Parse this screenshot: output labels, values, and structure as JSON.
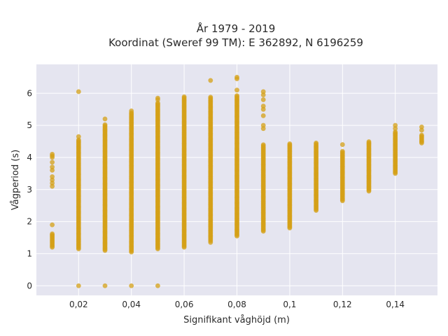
{
  "chart_data": {
    "type": "scatter",
    "title_line1": "År 1979 - 2019",
    "title_line2": "Koordinat (Sweref 99 TM): E 362892, N 6196259",
    "xlabel": "Signifikant våghöjd (m)",
    "ylabel": "Vågperiod (s)",
    "xlim": [
      0.004,
      0.156
    ],
    "ylim": [
      -0.3,
      6.9
    ],
    "x_ticks": [
      0.02,
      0.04,
      0.06,
      0.08,
      0.1,
      0.12,
      0.14
    ],
    "x_tick_labels": [
      "0,02",
      "0,04",
      "0,06",
      "0,08",
      "0,1",
      "0,12",
      "0,14"
    ],
    "y_ticks": [
      0,
      1,
      2,
      3,
      4,
      5,
      6
    ],
    "y_tick_labels": [
      "0",
      "1",
      "2",
      "3",
      "4",
      "5",
      "6"
    ],
    "grid": true,
    "colors": {
      "marker": "#d4a017",
      "plot_bg": "#e5e5f0",
      "grid": "#ffffff"
    },
    "series": [
      {
        "columns": [
          {
            "x": 0.01,
            "y_min": 1.2,
            "y_max": 1.65,
            "outliers": [
              1.9,
              3.1,
              3.2,
              3.3,
              3.4,
              3.6,
              3.7,
              3.85,
              4.0,
              4.05,
              4.1
            ]
          },
          {
            "x": 0.02,
            "y_min": 1.15,
            "y_max": 4.55,
            "outliers": [
              0,
              4.65,
              6.05
            ]
          },
          {
            "x": 0.03,
            "y_min": 1.1,
            "y_max": 5.05,
            "outliers": [
              0,
              5.2
            ]
          },
          {
            "x": 0.04,
            "y_min": 1.05,
            "y_max": 5.4,
            "outliers": [
              0,
              5.45
            ]
          },
          {
            "x": 0.05,
            "y_min": 1.15,
            "y_max": 5.7,
            "outliers": [
              0,
              5.8,
              5.85
            ]
          },
          {
            "x": 0.06,
            "y_min": 1.2,
            "y_max": 5.9,
            "outliers": []
          },
          {
            "x": 0.07,
            "y_min": 1.4,
            "y_max": 5.9,
            "outliers": [
              1.35,
              6.4
            ]
          },
          {
            "x": 0.08,
            "y_min": 1.55,
            "y_max": 5.95,
            "outliers": [
              6.1,
              6.45,
              6.5
            ]
          },
          {
            "x": 0.09,
            "y_min": 1.7,
            "y_max": 4.4,
            "outliers": [
              4.9,
              5.0,
              5.3,
              5.5,
              5.6,
              5.8,
              5.95,
              6.05
            ]
          },
          {
            "x": 0.1,
            "y_min": 1.8,
            "y_max": 4.45,
            "outliers": []
          },
          {
            "x": 0.11,
            "y_min": 2.35,
            "y_max": 4.45,
            "outliers": []
          },
          {
            "x": 0.12,
            "y_min": 2.65,
            "y_max": 4.2,
            "outliers": [
              4.4
            ]
          },
          {
            "x": 0.13,
            "y_min": 2.95,
            "y_max": 4.5,
            "outliers": []
          },
          {
            "x": 0.14,
            "y_min": 3.5,
            "y_max": 4.8,
            "outliers": [
              4.9,
              5.0
            ]
          },
          {
            "x": 0.15,
            "y_min": 4.45,
            "y_max": 4.7,
            "outliers": [
              4.85,
              4.95
            ]
          }
        ]
      }
    ]
  }
}
